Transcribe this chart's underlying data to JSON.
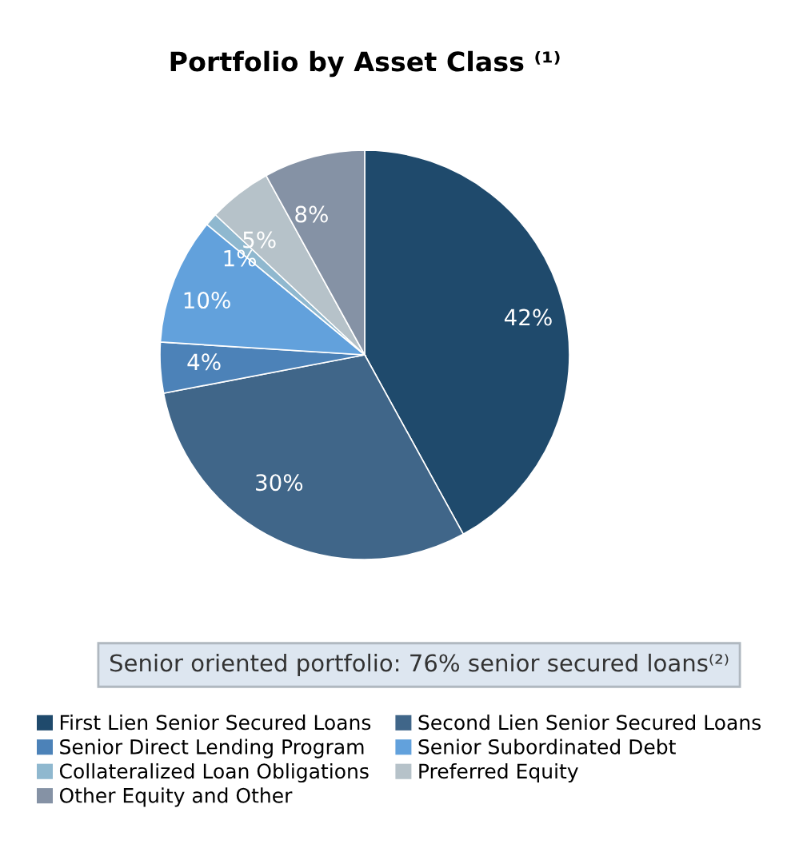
{
  "chart_data": {
    "type": "pie",
    "title": "Portfolio by Asset Class ⁽¹⁾",
    "categories": [
      "First Lien Senior Secured Loans",
      "Second Lien Senior Secured Loans",
      "Senior Direct Lending Program",
      "Senior Subordinated Debt",
      "Collateralized Loan Obligations",
      "Preferred Equity",
      "Other Equity and Other"
    ],
    "values": [
      42,
      30,
      4,
      10,
      1,
      5,
      8
    ],
    "value_labels": [
      "42%",
      "30%",
      "4%",
      "10%",
      "1%",
      "5%",
      "8%"
    ],
    "colors": [
      "#1f4a6c",
      "#406689",
      "#4c82b8",
      "#62a1dc",
      "#8fb8cf",
      "#b6c2c9",
      "#8592a5"
    ],
    "annotations": [
      "Senior oriented portfolio: 76% senior secured loans⁽²⁾"
    ],
    "legend": "bottom"
  }
}
